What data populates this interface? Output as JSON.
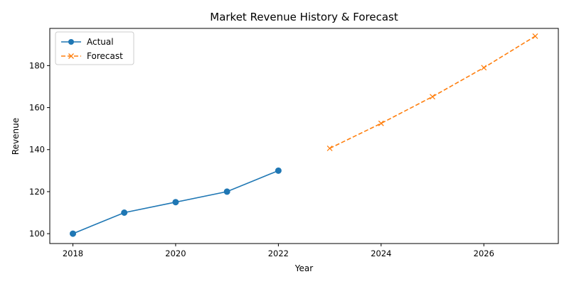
{
  "chart_data": {
    "type": "line",
    "title": "Market Revenue History & Forecast",
    "xlabel": "Year",
    "ylabel": "Revenue",
    "xlim": [
      2017.55,
      2027.45
    ],
    "ylim": [
      95.3,
      197.7
    ],
    "x_ticks": [
      2018,
      2020,
      2022,
      2024,
      2026
    ],
    "y_ticks": [
      100,
      120,
      140,
      160,
      180
    ],
    "grid": false,
    "legend_position": "top-left",
    "series": [
      {
        "name": "Actual",
        "color": "#1f77b4",
        "line_style": "solid",
        "marker": "circle",
        "x": [
          2018,
          2019,
          2020,
          2021,
          2022
        ],
        "y": [
          100,
          110,
          115,
          120,
          130
        ]
      },
      {
        "name": "Forecast",
        "color": "#ff7f0e",
        "line_style": "dashed",
        "marker": "x",
        "x": [
          2023,
          2024,
          2025,
          2026,
          2027
        ],
        "y": [
          140.6,
          152.5,
          165.2,
          179.0,
          194.0
        ]
      }
    ]
  }
}
